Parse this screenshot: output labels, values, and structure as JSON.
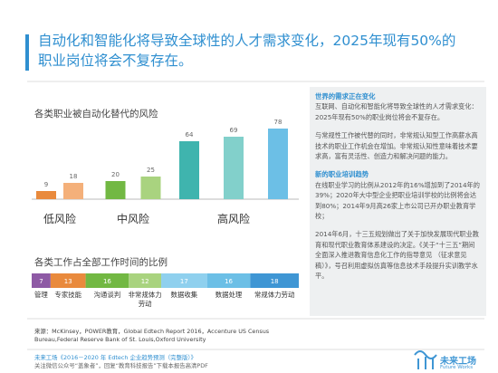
{
  "title": "自动化和智能化将导致全球性的人才需求变化，2025年现有50%的职业岗位将会不复存在。",
  "chart_data": [
    {
      "type": "grouped_bar",
      "title": "各类职业被自动化替代的风险",
      "categories": [
        "低风险",
        "中风险",
        "高风险"
      ],
      "values": [
        [
          9,
          18
        ],
        [
          20,
          25
        ],
        [
          64,
          69,
          78
        ]
      ],
      "colors": [
        [
          "#e98a3d",
          "#f4b07a"
        ],
        [
          "#72b843",
          "#a9d37f"
        ],
        [
          "#3fb4ae",
          "#82d0cb",
          "#6cbfe6"
        ]
      ]
    },
    {
      "type": "stacked_hbar",
      "title": "各类工作占全部工作时间的比例",
      "categories": [
        "管理",
        "专家技能",
        "沟通谈判",
        "非常规体力劳动",
        "数据收集",
        "数据处理",
        "常规体力劳动"
      ],
      "values": [
        7,
        13,
        16,
        12,
        17,
        16,
        18
      ],
      "colors": [
        "#8e5aa5",
        "#e98a3d",
        "#72b843",
        "#a9d37f",
        "#8fd0ee",
        "#6cbfe6",
        "#3f96d4"
      ]
    }
  ],
  "panel": {
    "heading1": "世界的需求正在变化",
    "p1": "互联网、自动化和智能化将导致全球性的人才需求变化：2025年现有50%的职业岗位将会不复存在。",
    "p2": "与常规性工作被代替的同时，非常规认知型工作高薪水高技术的职业工作机会在增加。非常规认知性意味着技术要求高，富有灵活性、创造力和解决问题的能力。",
    "heading2": "新的职业培训趋势",
    "p3": "在线职业学习的比例从2012年的16%增加到了2014年的39%；2020年大中型企业把职业培训学校的比例将会达到80%；2014年9月高26家上市公司已开办职业教育学校；",
    "p4": "2014年6月，十三五规划做出了关于加快发展现代职业教育和现代职业教育体系建设的决定。《关于“十三五”期间 全面深入推进教育信息化工作的指导意见 （征求意见稿）》，号召利用虚拟仿真等信息技术手段提升实训教学水平。"
  },
  "source": "来源：McKinsey，POWER教育，Global Edtech Report 2016，Accenture US Census Bureau,Federal Reserve Bank of St. Louis,Oxford University",
  "footer": {
    "line1": "未来工场《2016－2020 年 Edtech 企业趋势预测（完整版）》",
    "line2": "关注微信公众号“盖象者”，回复“教育科技报告”下载本报告高清PDF",
    "logo": "未来工场",
    "logo_sub": "Future Works"
  }
}
